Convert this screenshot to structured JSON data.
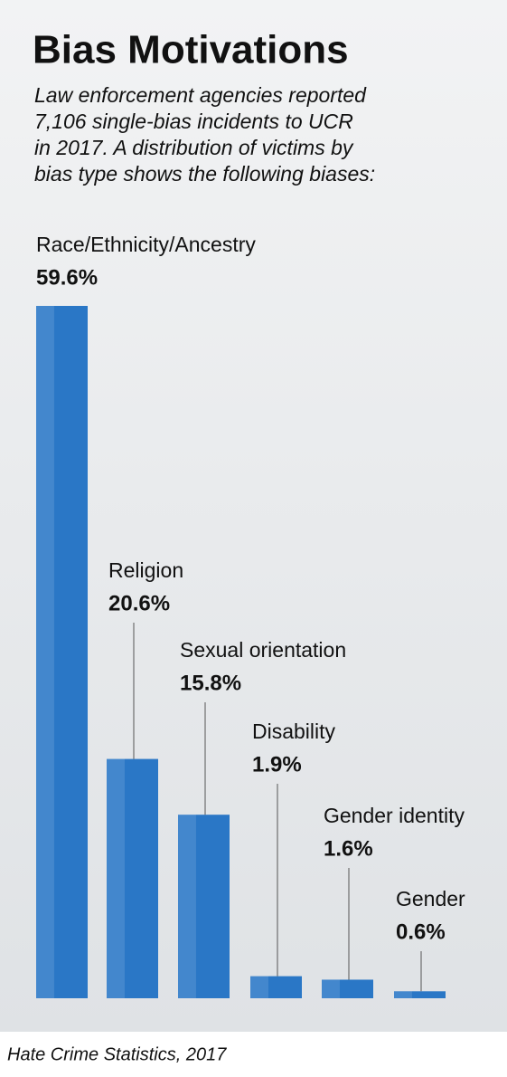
{
  "chart_data": {
    "type": "bar",
    "title": "Bias Motivations",
    "subtitle": [
      "Law enforcement agencies reported",
      "7,106 single-bias incidents to UCR",
      "in 2017. A distribution of victims by",
      "bias type shows the following biases:"
    ],
    "categories": [
      "Race/Ethnicity/Ancestry",
      "Religion",
      "Sexual orientation",
      "Disability",
      "Gender identity",
      "Gender"
    ],
    "values": [
      59.6,
      20.6,
      15.8,
      1.9,
      1.6,
      0.6
    ],
    "value_labels": [
      "59.6%",
      "20.6%",
      "15.8%",
      "1.9%",
      "1.6%",
      "0.6%"
    ],
    "color": "#2a77c6",
    "source": "Hate Crime Statistics, 2017"
  }
}
